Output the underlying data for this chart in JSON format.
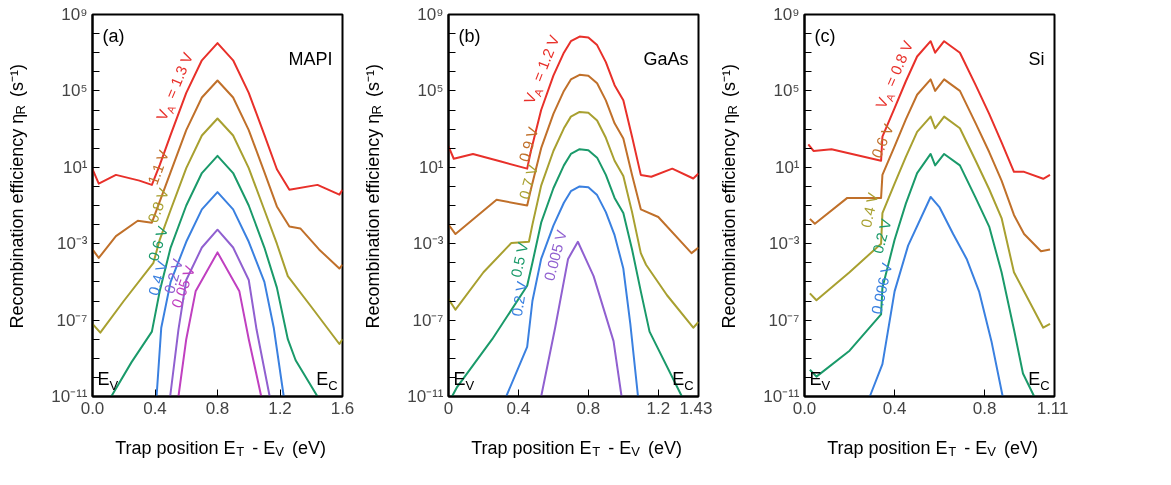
{
  "chart_data": [
    {
      "type": "line",
      "xlabel": "Trap position E$_{T}$ - E$_{V}$ (eV)",
      "ylabel": "Recombination efficiency η$_{R}$ (s⁻¹)",
      "log": true,
      "xlim": [
        0,
        1.6
      ],
      "xticks": [
        {
          "value": 0,
          "label": "0.0"
        },
        0.4,
        0.8,
        1.2,
        1.6
      ],
      "ylim": [
        1e-11,
        1000000000.0
      ],
      "yticks": [
        {
          "value": 1e-11,
          "label": "10⁻¹¹"
        },
        {
          "value": 1e-10,
          "label": null
        },
        {
          "value": 1e-09,
          "label": null
        },
        {
          "value": 1e-08,
          "label": null
        },
        {
          "value": 1e-07,
          "label": "10⁻⁷"
        },
        {
          "value": 1e-06,
          "label": null
        },
        {
          "value": 1e-05,
          "label": null
        },
        {
          "value": 0.0001,
          "label": null
        },
        {
          "value": 0.001,
          "label": "10⁻³"
        },
        {
          "value": 0.01,
          "label": null
        },
        {
          "value": 0.1,
          "label": null
        },
        {
          "value": 1,
          "label": null
        },
        {
          "value": 10,
          "label": "10¹"
        },
        {
          "value": 100,
          "label": null
        },
        {
          "value": 1000.0,
          "label": null
        },
        {
          "value": 10000.0,
          "label": null
        },
        {
          "value": 100000.0,
          "label": "10⁵"
        },
        {
          "value": 1000000.0,
          "label": null
        },
        {
          "value": 10000000.0,
          "label": null
        },
        {
          "value": 100000000.0,
          "label": null
        },
        {
          "value": 1000000000.0,
          "label": "10⁹"
        }
      ],
      "annotations": [
        "(a)",
        "MAPI",
        "E$_{V}$",
        "E$_{C}$"
      ],
      "series": [
        {
          "name": "V$_{A}$ = 1.3 V",
          "color": "#e8302a",
          "x": [
            0,
            0.04,
            0.15,
            0.3,
            0.38,
            0.43,
            0.5,
            0.6,
            0.7,
            0.8,
            0.9,
            1.0,
            1.1,
            1.18,
            1.26,
            1.44,
            1.58,
            1.6
          ],
          "values": [
            7.9,
            1.4,
            4.0,
            2.0,
            1.2,
            13,
            500,
            79000.0,
            4000000.0,
            32000000.0,
            4000000.0,
            79000.0,
            500,
            7.9,
            0.66,
            1.2,
            0.37,
            0.66
          ]
        },
        {
          "name": "1.1 V",
          "color": "#c0702a",
          "x": [
            0,
            0.04,
            0.15,
            0.29,
            0.38,
            0.43,
            0.5,
            0.6,
            0.7,
            0.8,
            0.9,
            1.0,
            1.1,
            1.18,
            1.26,
            1.33,
            1.45,
            1.58,
            1.6
          ],
          "values": [
            0.0005,
            0.00018,
            0.0025,
            0.016,
            0.0126,
            0.16,
            5.6,
            890,
            45000.0,
            350000.0,
            45000.0,
            890,
            5.6,
            0.089,
            0.0079,
            0.0063,
            0.0005,
            5e-05,
            7.9e-05
          ]
        },
        {
          "name": "0.8 V",
          "color": "#a8a030",
          "x": [
            0,
            0.05,
            0.2,
            0.39,
            0.43,
            0.5,
            0.6,
            0.7,
            0.8,
            0.9,
            1.0,
            1.1,
            1.18,
            1.25,
            1.4,
            1.58,
            1.6
          ],
          "values": [
            6.3e-08,
            2.2e-08,
            1e-06,
            0.0001,
            0.0016,
            0.058,
            9.1,
            460,
            3600,
            460,
            9.1,
            0.058,
            0.001,
            2e-05,
            5e-07,
            5.6e-09,
            1e-08
          ]
        },
        {
          "name": "0.6 V",
          "color": "#1a9a6a",
          "x": [
            0.12,
            0.25,
            0.38,
            0.43,
            0.5,
            0.6,
            0.7,
            0.8,
            0.9,
            1.0,
            1.1,
            1.18,
            1.25,
            1.3,
            1.44
          ],
          "values": [
            1e-11,
            6.3e-10,
            2.5e-08,
            3.2e-06,
            0.00063,
            0.1,
            5,
            40,
            5,
            0.1,
            0.00063,
            5e-06,
            1e-08,
            7.9e-10,
            1e-11
          ]
        },
        {
          "name": "0.4 V",
          "color": "#3a80e0",
          "x": [
            0.41,
            0.44,
            0.5,
            0.6,
            0.7,
            0.8,
            0.9,
            1.0,
            1.1,
            1.16,
            1.224
          ],
          "values": [
            1e-11,
            4e-08,
            1e-05,
            0.00126,
            0.063,
            0.5,
            0.063,
            0.00126,
            1e-05,
            4e-08,
            1e-11
          ]
        },
        {
          "name": "0.2 V",
          "color": "#9060d0",
          "x": [
            0.497,
            0.55,
            0.6,
            0.7,
            0.8,
            0.9,
            1.0,
            1.05,
            1.134
          ],
          "values": [
            1e-11,
            3.2e-08,
            1.26e-05,
            0.00063,
            0.0054,
            0.00063,
            1.26e-05,
            3.2e-08,
            1e-11
          ]
        },
        {
          "name": "0.05 V",
          "color": "#c040c0",
          "x": [
            0.55,
            0.6,
            0.66,
            0.8,
            0.94,
            1.0,
            1.08
          ],
          "values": [
            1e-11,
            1e-08,
            3.2e-06,
            0.00035,
            3.2e-06,
            1e-08,
            1e-11
          ]
        }
      ]
    },
    {
      "type": "line",
      "xlabel": "Trap position E$_{T}$ - E$_{V}$ (eV)",
      "ylabel": "Recombination efficiency η$_{R}$ (s⁻¹)",
      "log": true,
      "xlim": [
        0,
        1.43
      ],
      "xticks": [
        0,
        0.4,
        0.8,
        1.2,
        1.43
      ],
      "ylim": [
        1e-11,
        1000000000.0
      ],
      "yticks": [
        {
          "value": 1e-11,
          "label": "10⁻¹¹"
        },
        {
          "value": 1e-10,
          "label": null
        },
        {
          "value": 1e-09,
          "label": null
        },
        {
          "value": 1e-08,
          "label": null
        },
        {
          "value": 1e-07,
          "label": "10⁻⁷"
        },
        {
          "value": 1e-06,
          "label": null
        },
        {
          "value": 1e-05,
          "label": null
        },
        {
          "value": 0.0001,
          "label": null
        },
        {
          "value": 0.001,
          "label": "10⁻³"
        },
        {
          "value": 0.01,
          "label": null
        },
        {
          "value": 0.1,
          "label": null
        },
        {
          "value": 1,
          "label": null
        },
        {
          "value": 10,
          "label": "10¹"
        },
        {
          "value": 100,
          "label": null
        },
        {
          "value": 1000.0,
          "label": null
        },
        {
          "value": 10000.0,
          "label": null
        },
        {
          "value": 100000.0,
          "label": "10⁵"
        },
        {
          "value": 1000000.0,
          "label": null
        },
        {
          "value": 10000000.0,
          "label": null
        },
        {
          "value": 100000000.0,
          "label": null
        },
        {
          "value": 1000000000.0,
          "label": "10⁹"
        }
      ],
      "annotations": [
        "(b)",
        "GaAs",
        "E$_{V}$",
        "E$_{C}$"
      ],
      "series": [
        {
          "name": "V$_{A}$ = 1.2 V",
          "color": "#e8302a",
          "x": [
            0,
            0.03,
            0.14,
            0.3,
            0.45,
            0.47,
            0.53,
            0.6,
            0.66,
            0.7,
            0.75,
            0.8,
            0.85,
            0.9,
            0.95,
            1.0,
            1.05,
            1.1,
            1.16,
            1.28,
            1.4,
            1.43
          ],
          "values": [
            126,
            28,
            50,
            20,
            8.5,
            63,
            10000.0,
            630000.0,
            10000000.0,
            40000000.0,
            70000000.0,
            63000000.0,
            25000000.0,
            3200000.0,
            200000.0,
            32000.0,
            400,
            4,
            3.2,
            8.5,
            2.6,
            4.7
          ]
        },
        {
          "name": "0.9 V",
          "color": "#c0702a",
          "x": [
            0,
            0.04,
            0.275,
            0.45,
            0.47,
            0.53,
            0.6,
            0.66,
            0.7,
            0.75,
            0.8,
            0.85,
            0.9,
            0.95,
            1.0,
            1.05,
            1.1,
            1.2,
            1.39,
            1.43
          ],
          "values": [
            0.01,
            0.0032,
            0.2,
            0.1,
            0.63,
            100,
            6300,
            100000.0,
            400000.0,
            700000.0,
            630000.0,
            250000.0,
            32000.0,
            2000,
            320,
            4,
            0.063,
            0.025,
            0.00032,
            0.00063
          ]
        },
        {
          "name": "0.7 V",
          "color": "#a8a030",
          "x": [
            0,
            0.04,
            0.2,
            0.36,
            0.46,
            0.48,
            0.53,
            0.6,
            0.66,
            0.7,
            0.75,
            0.8,
            0.85,
            0.9,
            0.95,
            1.0,
            1.05,
            1.1,
            1.13,
            1.25,
            1.4,
            1.43
          ],
          "values": [
            1.26e-06,
            3.5e-07,
            3.2e-05,
            0.0011,
            0.00126,
            0.01,
            1.1,
            71,
            1100,
            4500,
            7900,
            7100,
            2800,
            350,
            22,
            3.5,
            0.045,
            0.00032,
            7.9e-05,
            2e-06,
            4e-08,
            7.9e-08
          ]
        },
        {
          "name": "0.5 V",
          "color": "#1a9a6a",
          "x": [
            0.02,
            0.05,
            0.25,
            0.45,
            0.48,
            0.53,
            0.6,
            0.66,
            0.7,
            0.75,
            0.8,
            0.85,
            0.9,
            0.95,
            1.0,
            1.05,
            1.1,
            1.15,
            1.335
          ],
          "values": [
            1e-11,
            3.2e-11,
            1e-08,
            6.3e-06,
            0.0001,
            0.0126,
            0.8,
            12.6,
            50,
            89,
            79,
            32,
            4,
            0.25,
            0.04,
            0.0005,
            3.2e-06,
            2.5e-08,
            1e-11
          ]
        },
        {
          "name": "0.2 V",
          "color": "#3a80e0",
          "x": [
            0.33,
            0.45,
            0.48,
            0.53,
            0.6,
            0.66,
            0.7,
            0.75,
            0.8,
            0.85,
            0.9,
            0.95,
            1.0,
            1.04,
            1.084
          ],
          "values": [
            1e-11,
            4e-09,
            1e-06,
            0.00016,
            0.0089,
            0.14,
            0.56,
            1,
            0.89,
            0.35,
            0.045,
            0.0028,
            5e-05,
            6.3e-08,
            1e-11
          ]
        },
        {
          "name": "0.005 V",
          "color": "#9060d0",
          "x": [
            0.53,
            0.61,
            0.684,
            0.74,
            0.83,
            0.944,
            0.99
          ],
          "values": [
            1e-11,
            4e-08,
            0.00016,
            0.00126,
            2e-05,
            7.9e-09,
            1e-11
          ]
        }
      ]
    },
    {
      "type": "line",
      "xlabel": "Trap position E$_{T}$ - E$_{V}$ (eV)",
      "ylabel": "Recombination efficiency η$_{R}$ (s⁻¹)",
      "log": true,
      "xlim": [
        0,
        1.11
      ],
      "xticks": [
        {
          "value": 0,
          "label": "0.0"
        },
        0.4,
        0.8,
        1.11
      ],
      "ylim": [
        1e-11,
        1000000000.0
      ],
      "yticks": [
        {
          "value": 1e-11,
          "label": "10⁻¹¹"
        },
        {
          "value": 1e-10,
          "label": null
        },
        {
          "value": 1e-09,
          "label": null
        },
        {
          "value": 1e-08,
          "label": null
        },
        {
          "value": 1e-07,
          "label": "10⁻⁷"
        },
        {
          "value": 1e-06,
          "label": null
        },
        {
          "value": 1e-05,
          "label": null
        },
        {
          "value": 0.0001,
          "label": null
        },
        {
          "value": 0.001,
          "label": "10⁻³"
        },
        {
          "value": 0.01,
          "label": null
        },
        {
          "value": 0.1,
          "label": null
        },
        {
          "value": 1,
          "label": null
        },
        {
          "value": 10,
          "label": "10¹"
        },
        {
          "value": 100,
          "label": null
        },
        {
          "value": 1000.0,
          "label": null
        },
        {
          "value": 10000.0,
          "label": null
        },
        {
          "value": 100000.0,
          "label": "10⁵"
        },
        {
          "value": 1000000.0,
          "label": null
        },
        {
          "value": 10000000.0,
          "label": null
        },
        {
          "value": 100000000.0,
          "label": null
        },
        {
          "value": 1000000000.0,
          "label": "10⁹"
        }
      ],
      "annotations": [
        "(c)",
        "Si",
        "E$_{V}$",
        "E$_{C}$"
      ],
      "series": [
        {
          "name": "V$_{A}$ = 0.8 V",
          "color": "#e8302a",
          "x": [
            0.017,
            0.04,
            0.12,
            0.34,
            0.346,
            0.4,
            0.45,
            0.5,
            0.56,
            0.58,
            0.62,
            0.69,
            0.76,
            0.82,
            0.875,
            0.93,
            0.975,
            1.06,
            1.09
          ],
          "values": [
            160,
            72,
            89,
            22,
            400,
            12600.0,
            320000.0,
            6300000.0,
            40000000.0,
            10000000.0,
            40000000.0,
            10000000.0,
            200000.0,
            6300,
            200,
            5.8,
            5.8,
            2.5,
            4
          ]
        },
        {
          "name": "0.6 V",
          "color": "#c0702a",
          "x": [
            0.024,
            0.046,
            0.19,
            0.34,
            0.346,
            0.4,
            0.45,
            0.5,
            0.56,
            0.58,
            0.62,
            0.69,
            0.76,
            0.82,
            0.875,
            0.93,
            0.975,
            1.05,
            1.09
          ],
          "values": [
            0.02,
            0.011,
            0.25,
            0.25,
            4,
            126,
            3200,
            63000.0,
            400000.0,
            100000.0,
            400000.0,
            100000.0,
            2000,
            63,
            2,
            0.032,
            0.0032,
            0.0004,
            0.0005
          ]
        },
        {
          "name": "0.4 V",
          "color": "#a8a030",
          "x": [
            0.024,
            0.053,
            0.2,
            0.34,
            0.346,
            0.4,
            0.45,
            0.5,
            0.56,
            0.58,
            0.62,
            0.69,
            0.76,
            0.82,
            0.875,
            0.93,
            1.06,
            1.09
          ],
          "values": [
            2.5e-06,
            1.1e-06,
            3.2e-05,
            0.001,
            0.04,
            1.4,
            35,
            710,
            4500,
            1100,
            4500,
            1100,
            22,
            0.71,
            0.022,
            3.2e-05,
            4e-08,
            6.3e-08
          ]
        },
        {
          "name": "0.2 V",
          "color": "#1a9a6a",
          "x": [
            0.024,
            0.053,
            0.2,
            0.34,
            0.346,
            0.4,
            0.45,
            0.5,
            0.56,
            0.58,
            0.62,
            0.69,
            0.76,
            0.82,
            0.875,
            0.93,
            0.97,
            1.02
          ],
          "values": [
            2.5e-10,
            1.1e-10,
            2.5e-09,
            2e-07,
            5e-06,
            0.0016,
            0.126,
            5,
            50,
            12.6,
            50,
            12.6,
            0.25,
            0.0079,
            3.2e-05,
            3.2e-08,
            1.6e-10,
            1e-11
          ]
        },
        {
          "name": "0.006 V",
          "color": "#3a80e0",
          "x": [
            0.29,
            0.346,
            0.4,
            0.46,
            0.56,
            0.6,
            0.66,
            0.72,
            0.775,
            0.83,
            0.88
          ],
          "values": [
            1e-11,
            5e-10,
            3.2e-06,
            0.00079,
            0.28,
            0.079,
            0.0032,
            0.00016,
            3.2e-06,
            7.9e-09,
            1e-11
          ]
        }
      ]
    }
  ]
}
